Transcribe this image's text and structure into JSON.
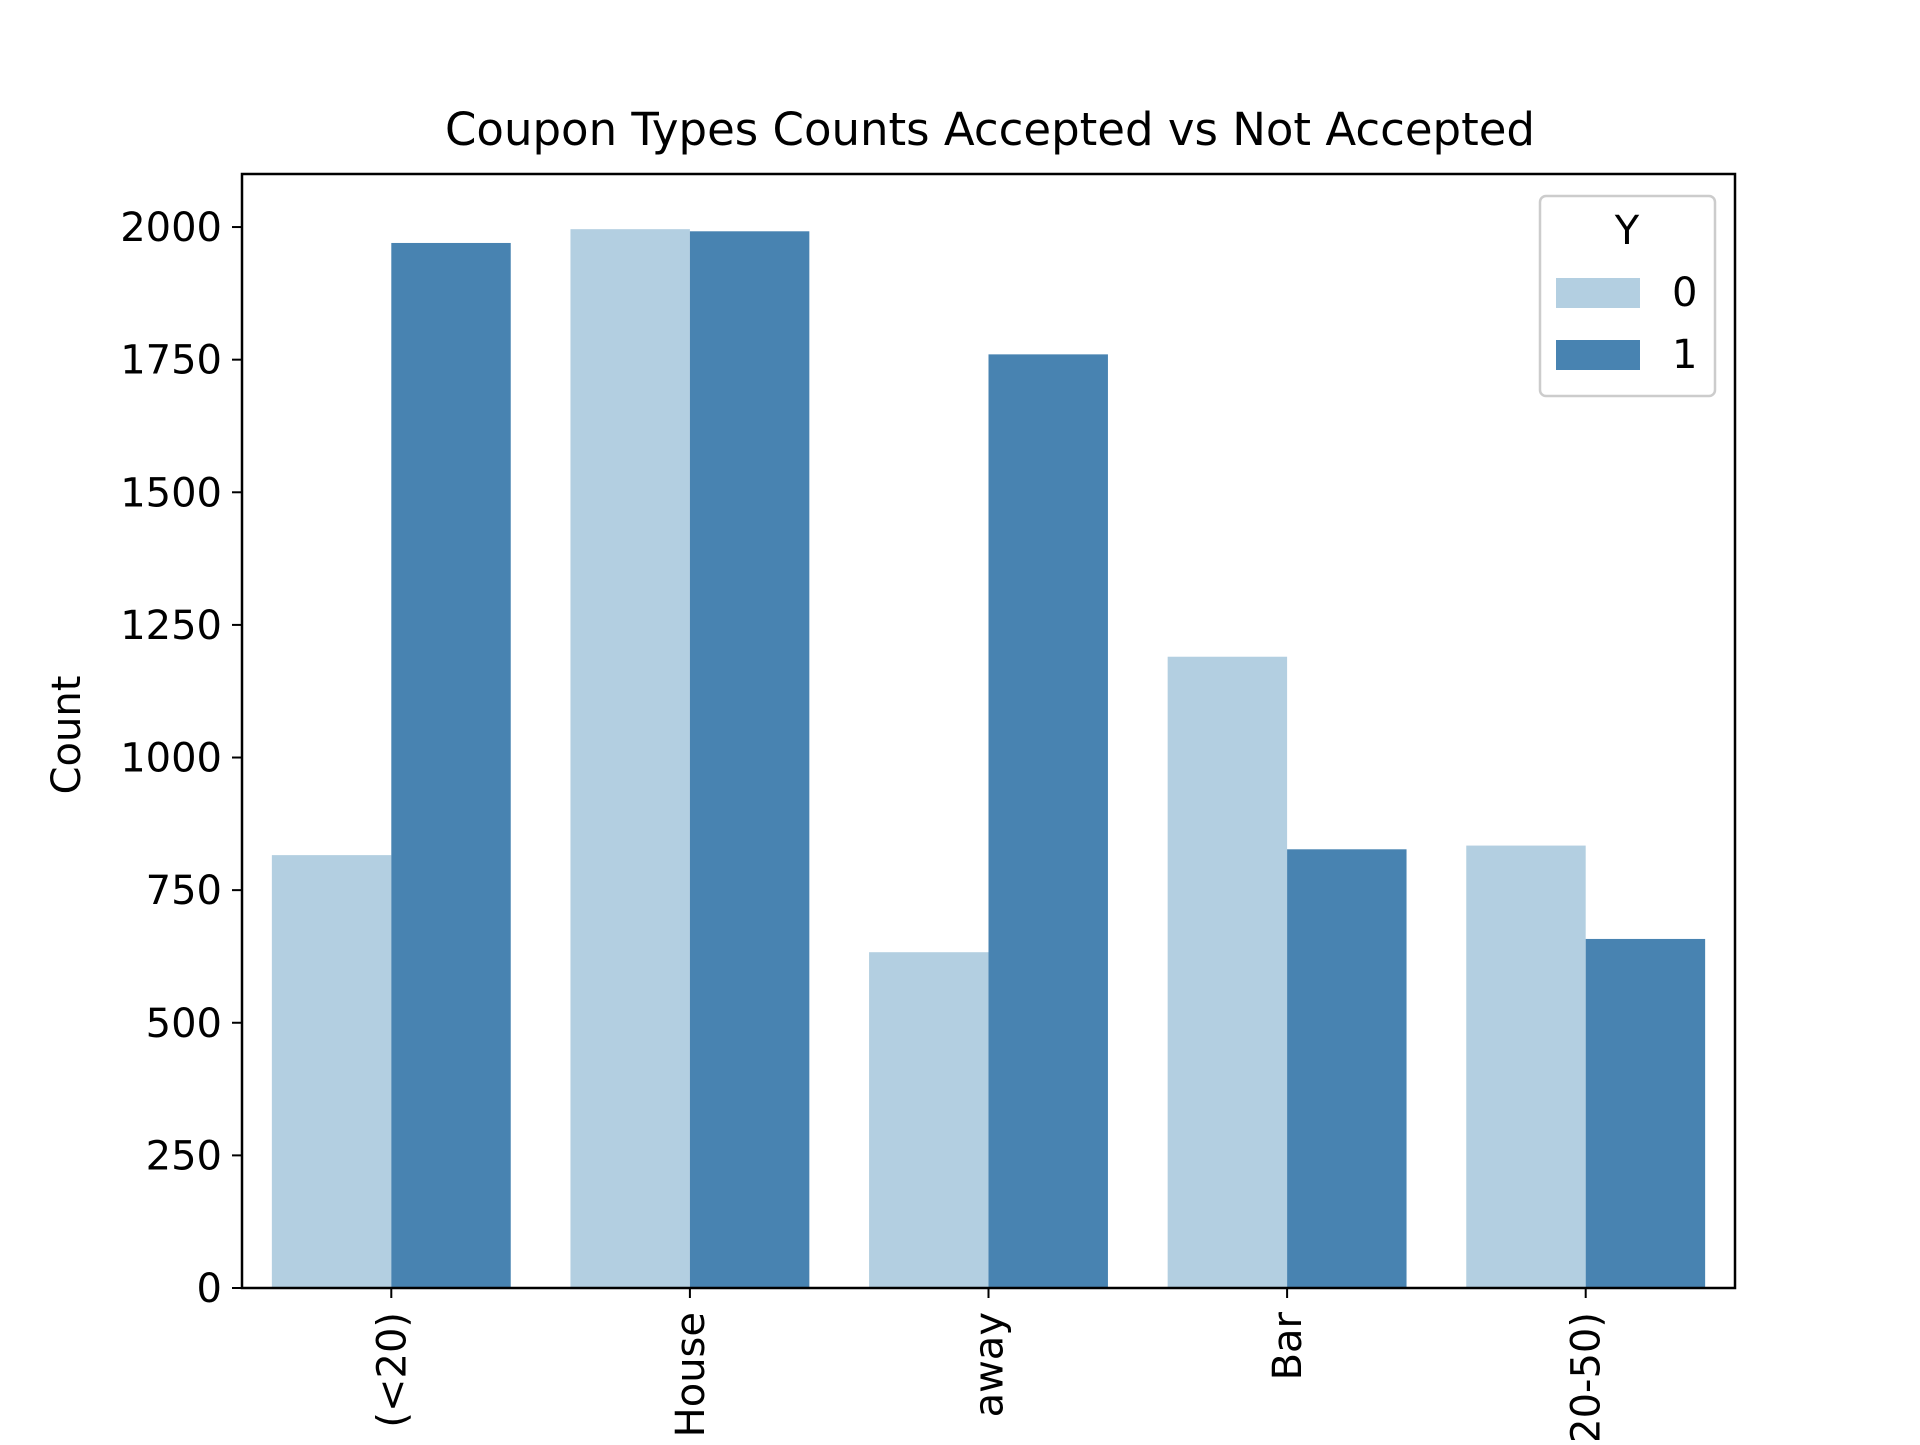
{
  "chart_data": {
    "type": "bar",
    "title": "Coupon Types Counts Accepted vs Not Accepted",
    "xlabel": "",
    "ylabel": "Count",
    "ylim": [
      0,
      2100
    ],
    "yticks": [
      0,
      250,
      500,
      750,
      1000,
      1250,
      1500,
      1750,
      2000
    ],
    "categories": [
      "(<20)",
      "House",
      "away",
      "Bar",
      "20-50)"
    ],
    "series": [
      {
        "name": "0",
        "color": "#b3cfe1",
        "values": [
          816,
          1996,
          633,
          1190,
          834
        ]
      },
      {
        "name": "1",
        "color": "#4883b1",
        "values": [
          1970,
          1992,
          1760,
          827,
          658
        ]
      }
    ],
    "legend": {
      "title": "Y",
      "position": "top-right"
    },
    "grid": false
  }
}
